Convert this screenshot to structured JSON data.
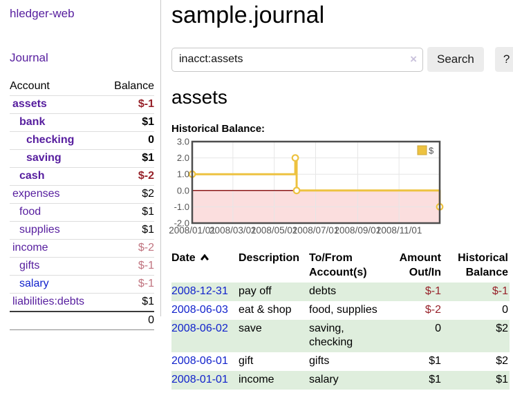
{
  "colors": {
    "purple": "#561d9e",
    "blue": "#1122cc",
    "neg_strong": "#97222a",
    "neg_soft": "#c0737f",
    "row_green": "#dfeedd",
    "rule": "#dddddd",
    "chart_gold": "#edc240",
    "chart_pink": "#fbdede",
    "chart_zero_line": "#8b1a1a",
    "chart_border": "#4d4d4d",
    "chart_grid": "#e6e6e6",
    "axis_text": "#545454"
  },
  "sidebar": {
    "app_title": "hledger-web",
    "nav": {
      "journal_label": "Journal"
    },
    "accounts": {
      "headers": {
        "account": "Account",
        "balance": "Balance"
      },
      "rows": [
        {
          "name": "assets",
          "balance": "$-1",
          "depth": 0,
          "bold": true,
          "balance_class": "neg-strong",
          "link_class": ""
        },
        {
          "name": "bank",
          "balance": "$1",
          "depth": 1,
          "bold": true,
          "balance_class": "",
          "link_class": ""
        },
        {
          "name": "checking",
          "balance": "0",
          "depth": 2,
          "bold": true,
          "balance_class": "",
          "link_class": ""
        },
        {
          "name": "saving",
          "balance": "$1",
          "depth": 2,
          "bold": true,
          "balance_class": "",
          "link_class": ""
        },
        {
          "name": "cash",
          "balance": "$-2",
          "depth": 1,
          "bold": true,
          "balance_class": "neg-strong",
          "link_class": ""
        },
        {
          "name": "expenses",
          "balance": "$2",
          "depth": 0,
          "bold": false,
          "balance_class": "",
          "link_class": ""
        },
        {
          "name": "food",
          "balance": "$1",
          "depth": 1,
          "bold": false,
          "balance_class": "",
          "link_class": ""
        },
        {
          "name": "supplies",
          "balance": "$1",
          "depth": 1,
          "bold": false,
          "balance_class": "",
          "link_class": ""
        },
        {
          "name": "income",
          "balance": "$-2",
          "depth": 0,
          "bold": false,
          "balance_class": "neg-soft",
          "link_class": ""
        },
        {
          "name": "gifts",
          "balance": "$-1",
          "depth": 1,
          "bold": false,
          "balance_class": "neg-soft",
          "link_class": ""
        },
        {
          "name": "salary",
          "balance": "$-1",
          "depth": 1,
          "bold": false,
          "balance_class": "neg-soft",
          "link_class": "unvisited"
        },
        {
          "name": "liabilities:debts",
          "balance": "$1",
          "depth": 0,
          "bold": false,
          "balance_class": "",
          "link_class": ""
        }
      ],
      "total": "0"
    }
  },
  "main": {
    "page_title": "sample.journal",
    "search": {
      "value": "inacct:assets",
      "clear_icon": "×",
      "button_label": "Search",
      "help_label": "?"
    },
    "account_heading": "assets",
    "chart_label": "Historical Balance:"
  },
  "chart_data": {
    "type": "line",
    "title": "Historical Balance:",
    "step": true,
    "xlim_days": [
      0,
      365
    ],
    "ylim": [
      -2,
      3
    ],
    "yticks": [
      {
        "value": 3,
        "label": "3.0"
      },
      {
        "value": 2,
        "label": "2.0"
      },
      {
        "value": 1,
        "label": "1.0"
      },
      {
        "value": 0,
        "label": "0.0"
      },
      {
        "value": -1,
        "label": "-1.0"
      },
      {
        "value": -2,
        "label": "-2.0"
      }
    ],
    "xticks": [
      {
        "day": 0,
        "label": "2008/01/01"
      },
      {
        "day": 60,
        "label": "2008/03/01"
      },
      {
        "day": 121,
        "label": "2008/05/01"
      },
      {
        "day": 182,
        "label": "2008/07/01"
      },
      {
        "day": 244,
        "label": "2008/09/01"
      },
      {
        "day": 305,
        "label": "2008/11/01"
      }
    ],
    "series": [
      {
        "name": "$",
        "points": [
          {
            "date": "2008-01-01",
            "day": 0,
            "value": 1
          },
          {
            "date": "2008-06-01",
            "day": 152,
            "value": 2
          },
          {
            "date": "2008-06-03",
            "day": 154,
            "value": 0
          },
          {
            "date": "2008-12-31",
            "day": 365,
            "value": -1
          }
        ]
      }
    ],
    "legend": {
      "label": "$",
      "position": "top-right"
    },
    "negative_region_shaded": true
  },
  "register": {
    "headers": {
      "date": "Date",
      "description": "Description",
      "account": "To/From\nAccount(s)",
      "amount": "Amount\nOut/In",
      "balance": "Historical\nBalance"
    },
    "sort": {
      "column": "date",
      "direction": "ascending"
    },
    "rows": [
      {
        "date": "2008-12-31",
        "description": "pay off",
        "accounts": "debts",
        "amount": "$-1",
        "amount_negative": true,
        "balance": "$-1",
        "balance_negative": true,
        "highlight": true
      },
      {
        "date": "2008-06-03",
        "description": "eat & shop",
        "accounts": "food, supplies",
        "amount": "$-2",
        "amount_negative": true,
        "balance": "0",
        "balance_negative": false,
        "highlight": false
      },
      {
        "date": "2008-06-02",
        "description": "save",
        "accounts": "saving, checking",
        "amount": "0",
        "amount_negative": false,
        "balance": "$2",
        "balance_negative": false,
        "highlight": true
      },
      {
        "date": "2008-06-01",
        "description": "gift",
        "accounts": "gifts",
        "amount": "$1",
        "amount_negative": false,
        "balance": "$2",
        "balance_negative": false,
        "highlight": false
      },
      {
        "date": "2008-01-01",
        "description": "income",
        "accounts": "salary",
        "amount": "$1",
        "amount_negative": false,
        "balance": "$1",
        "balance_negative": false,
        "highlight": true
      }
    ]
  }
}
